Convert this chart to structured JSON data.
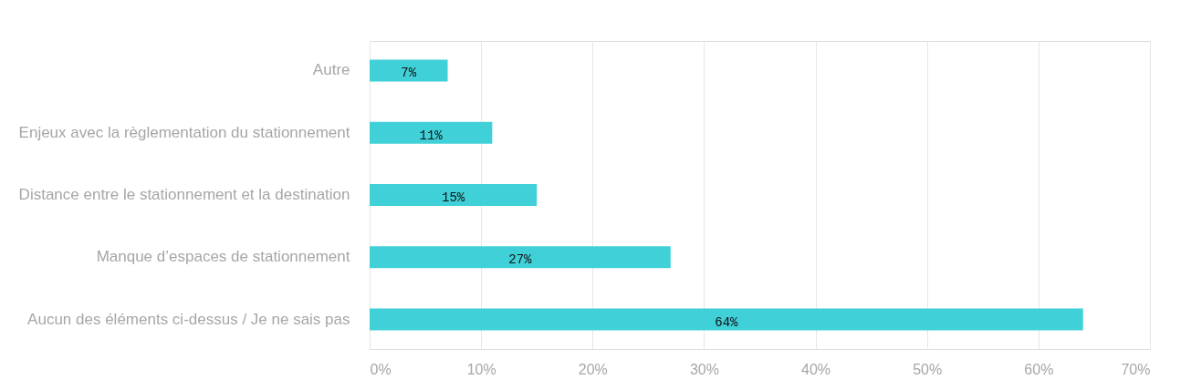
{
  "chart_data": {
    "type": "bar",
    "orientation": "horizontal",
    "categories": [
      "Autre",
      "Enjeux avec la règlementation du stationnement",
      "Distance entre le stationnement et la destination",
      "Manque d’espaces de stationnement",
      "Aucun des éléments ci-dessus / Je ne sais pas"
    ],
    "values": [
      7,
      11,
      15,
      27,
      64
    ],
    "value_labels": [
      "7%",
      "11%",
      "15%",
      "27%",
      "64%"
    ],
    "color": "#40d0d8",
    "grid": "x",
    "xlim": [
      0,
      70
    ],
    "xticks": [
      {
        "value": 0,
        "label": "0%"
      },
      {
        "value": 10,
        "label": "10%"
      },
      {
        "value": 20,
        "label": "20%"
      },
      {
        "value": 30,
        "label": "30%"
      },
      {
        "value": 40,
        "label": "40%"
      },
      {
        "value": 50,
        "label": "50%"
      },
      {
        "value": 60,
        "label": "60%"
      },
      {
        "value": 70,
        "label": "70%"
      }
    ]
  }
}
